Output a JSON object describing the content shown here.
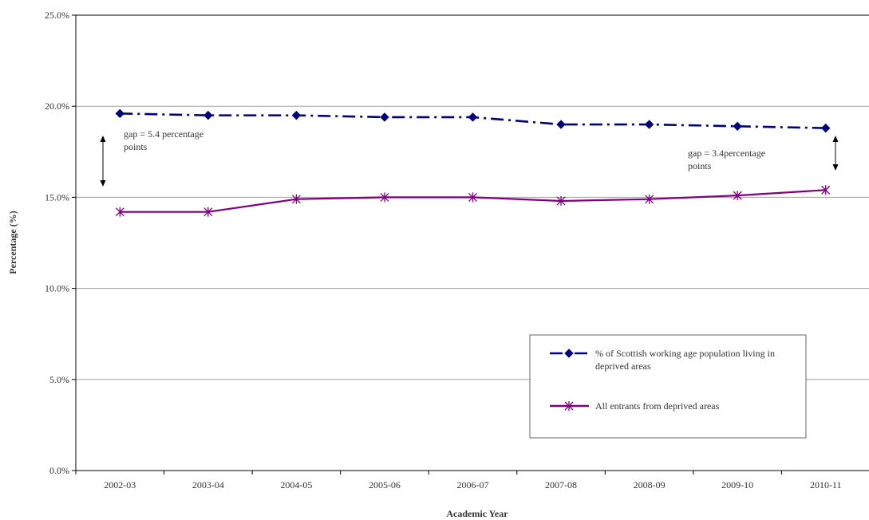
{
  "chart_data": {
    "type": "line",
    "title": "",
    "xlabel": "Academic Year",
    "ylabel": "Percentage (%)",
    "ylim": [
      0,
      25
    ],
    "yticks": [
      "0.0%",
      "5.0%",
      "10.0%",
      "15.0%",
      "20.0%",
      "25.0%"
    ],
    "ytick_values": [
      0,
      5,
      10,
      15,
      20,
      25
    ],
    "grid": true,
    "legend_position": "bottom-right",
    "categories": [
      "2002-03",
      "2003-04",
      "2004-05",
      "2005-06",
      "2006-07",
      "2007-08",
      "2008-09",
      "2009-10",
      "2010-11"
    ],
    "series": [
      {
        "name": "% of Scottish working age population  living in deprived areas",
        "values": [
          19.6,
          19.5,
          19.5,
          19.4,
          19.4,
          19.0,
          19.0,
          18.9,
          18.8
        ],
        "color": "#00007f",
        "marker": "diamond",
        "line_style": "dash-dot"
      },
      {
        "name": "All entrants from deprived areas",
        "values": [
          14.2,
          14.2,
          14.9,
          15.0,
          15.0,
          14.8,
          14.9,
          15.1,
          15.4
        ],
        "color": "#7f007f",
        "marker": "asterisk",
        "line_style": "solid"
      }
    ],
    "annotations": [
      {
        "id": "gap-left",
        "lines": [
          "gap = 5.4 percentage",
          "points"
        ]
      },
      {
        "id": "gap-right",
        "lines": [
          "gap = 3.4percentage",
          "points"
        ]
      }
    ]
  }
}
